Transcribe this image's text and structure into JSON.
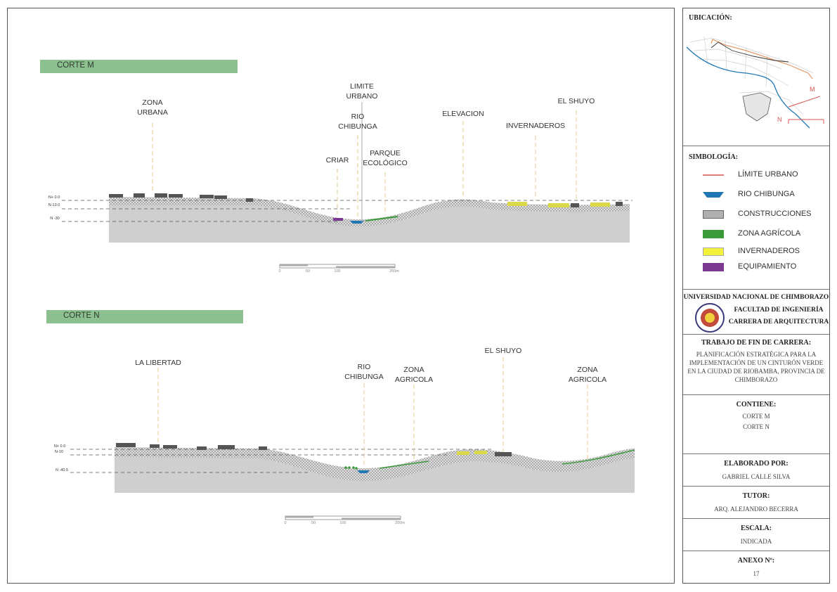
{
  "corte_m": {
    "title": "CORTE M",
    "labels": {
      "zona_urbana": "ZONA\nURBANA",
      "limite_urbano": "LIMITE\nURBANO",
      "rio_chibunga": "RIO\nCHIBUNGA",
      "criar": "CRIAR",
      "parque": "PARQUE\nECOLÓGICO",
      "elevacion": "ELEVACION",
      "invernaderos": "INVERNADEROS",
      "el_shuyo": "EL SHUYO"
    },
    "levels": [
      "N+ 0.0",
      "N-13.0",
      "N -30"
    ],
    "scale": [
      "0",
      "50",
      "100",
      "200m"
    ]
  },
  "corte_n": {
    "title": "CORTE N",
    "labels": {
      "la_libertad": "LA LIBERTAD",
      "rio_chibunga": "RIO\nCHIBUNGA",
      "zona_agricola_1": "ZONA\nAGRICOLA",
      "el_shuyo": "EL SHUYO",
      "zona_agricola_2": "ZONA\nAGRICOLA"
    },
    "levels": [
      "N+ 0.0",
      "N-10",
      "N -40.5"
    ],
    "scale": [
      "0",
      "50",
      "100",
      "200m"
    ]
  },
  "sidebar": {
    "ubicacion_title": "UBICACIÓN:",
    "map_marker_m": "M",
    "map_marker_n": "N",
    "simbologia_title": "SIMBOLOGÍA:",
    "legend": [
      {
        "label": "LÍMITE URBANO",
        "color": "#d9534f"
      },
      {
        "label": "RIO CHIBUNGA",
        "color": "#1f78b4"
      },
      {
        "label": "CONSTRUCCIONES",
        "color": "#b0b0b0"
      },
      {
        "label": "ZONA AGRÍCOLA",
        "color": "#3a9a3a"
      },
      {
        "label": "INVERNADEROS",
        "color": "#f2f23a"
      },
      {
        "label": "EQUIPAMIENTO",
        "color": "#7b3a8f"
      }
    ],
    "university": "UNIVERSIDAD NACIONAL DE CHIMBORAZO",
    "faculty": "FACULTAD DE INGENIERÍA",
    "career": "CARRERA DE ARQUITECTURA",
    "trabajo_title": "TRABAJO DE FIN DE CARRERA:",
    "trabajo_text": "PLANIFICACIÓN ESTRATÉGICA PARA LA IMPLEMENTACIÓN DE UN CINTURÓN VERDE EN LA CIUDAD DE RIOBAMBA, PROVINCIA DE CHIMBORAZO",
    "contiene_title": "CONTIENE:",
    "contiene_1": "CORTE M",
    "contiene_2": "CORTE N",
    "elaborado_title": "ELABORADO POR:",
    "elaborado": "GABRIEL CALLE SILVA",
    "tutor_title": "TUTOR:",
    "tutor": "ARQ. ALEJANDRO BECERRA",
    "escala_title": "ESCALA:",
    "escala": "INDICADA",
    "anexo_title": "ANEXO Nº:",
    "anexo": "17"
  }
}
